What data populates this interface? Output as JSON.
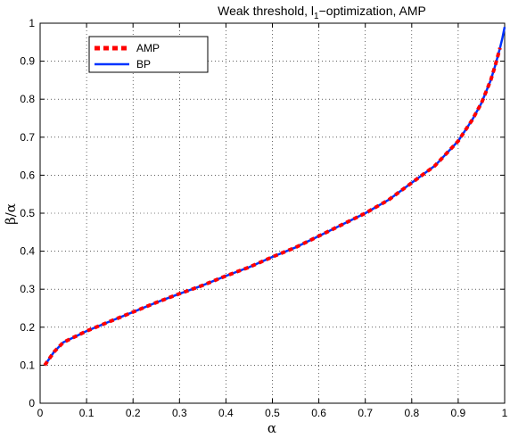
{
  "chart_data": {
    "type": "line",
    "title": "Weak threshold, l",
    "title_subscript": "1",
    "title_rest": "−optimization, AMP",
    "xlabel": "α",
    "ylabel": "β/α",
    "xlim": [
      0,
      1
    ],
    "ylim": [
      0,
      1
    ],
    "xticks": [
      0,
      0.1,
      0.2,
      0.3,
      0.4,
      0.5,
      0.6,
      0.7,
      0.8,
      0.9,
      1
    ],
    "yticks": [
      0,
      0.1,
      0.2,
      0.3,
      0.4,
      0.5,
      0.6,
      0.7,
      0.8,
      0.9,
      1
    ],
    "xtick_labels": [
      "0",
      "0.1",
      "0.2",
      "0.3",
      "0.4",
      "0.5",
      "0.6",
      "0.7",
      "0.8",
      "0.9",
      "1"
    ],
    "ytick_labels": [
      "0",
      "0.1",
      "0.2",
      "0.3",
      "0.4",
      "0.5",
      "0.6",
      "0.7",
      "0.8",
      "0.9",
      "1"
    ],
    "grid": true,
    "legend_position": "top-left",
    "series": [
      {
        "name": "AMP",
        "color": "#ff0000",
        "style": "dashed",
        "x": [
          0.01,
          0.03,
          0.05,
          0.08,
          0.1,
          0.15,
          0.2,
          0.25,
          0.3,
          0.35,
          0.4,
          0.45,
          0.5,
          0.55,
          0.6,
          0.65,
          0.7,
          0.75,
          0.8,
          0.85,
          0.9,
          0.93,
          0.95,
          0.97,
          0.98,
          0.99
        ],
        "y": [
          0.1,
          0.135,
          0.16,
          0.178,
          0.19,
          0.215,
          0.24,
          0.265,
          0.288,
          0.31,
          0.335,
          0.358,
          0.385,
          0.41,
          0.44,
          0.47,
          0.5,
          0.535,
          0.58,
          0.625,
          0.69,
          0.745,
          0.79,
          0.85,
          0.89,
          0.935
        ]
      },
      {
        "name": "BP",
        "color": "#0033ff",
        "style": "solid",
        "x": [
          0.01,
          0.03,
          0.05,
          0.08,
          0.1,
          0.15,
          0.2,
          0.25,
          0.3,
          0.35,
          0.4,
          0.45,
          0.5,
          0.55,
          0.6,
          0.65,
          0.7,
          0.75,
          0.8,
          0.85,
          0.9,
          0.93,
          0.95,
          0.97,
          0.98,
          0.99,
          0.995,
          1.0
        ],
        "y": [
          0.1,
          0.135,
          0.16,
          0.178,
          0.19,
          0.215,
          0.24,
          0.265,
          0.288,
          0.31,
          0.335,
          0.358,
          0.385,
          0.41,
          0.44,
          0.47,
          0.5,
          0.535,
          0.58,
          0.625,
          0.69,
          0.745,
          0.79,
          0.85,
          0.89,
          0.935,
          0.96,
          0.99
        ]
      }
    ]
  }
}
